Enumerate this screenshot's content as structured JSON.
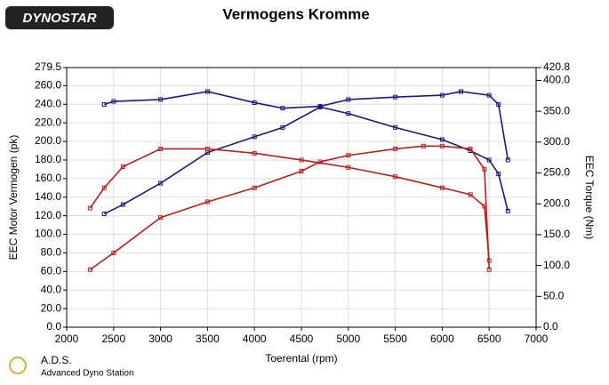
{
  "logo": "DYNOSTAR",
  "footer": {
    "title": "A.D.S.",
    "subtitle": "Advanced Dyno Station"
  },
  "chart_data": {
    "type": "line",
    "title": "Vermogens Kromme",
    "x_label": "Toerental (rpm)",
    "y_label": "EEC Motor Vermogen (pk)",
    "y2_label": "EEC Torque (Nm)",
    "xlim": [
      2000,
      7000
    ],
    "xticks": [
      2000,
      2500,
      3000,
      3500,
      4000,
      4500,
      5000,
      5500,
      6000,
      6500,
      7000
    ],
    "ylim": [
      0,
      279.5
    ],
    "yticks": [
      {
        "value": 0,
        "label": "0.0"
      },
      {
        "value": 20,
        "label": "20.0"
      },
      {
        "value": 40,
        "label": "40.0"
      },
      {
        "value": 60,
        "label": "60.0"
      },
      {
        "value": 80,
        "label": "80.0"
      },
      {
        "value": 100,
        "label": "100.0"
      },
      {
        "value": 120,
        "label": "120.0"
      },
      {
        "value": 140,
        "label": "140.0"
      },
      {
        "value": 160,
        "label": "160.0"
      },
      {
        "value": 180,
        "label": "180.0"
      },
      {
        "value": 200,
        "label": "200.0"
      },
      {
        "value": 220,
        "label": "220.0"
      },
      {
        "value": 240,
        "label": "240.0"
      },
      {
        "value": 260,
        "label": "260.0"
      },
      {
        "value": 279.5,
        "label": "279.5"
      }
    ],
    "y2lim": [
      0,
      420.8
    ],
    "y2ticks": [
      {
        "value": 0,
        "label": "0.0"
      },
      {
        "value": 50,
        "label": "50.0"
      },
      {
        "value": 100,
        "label": "100.0"
      },
      {
        "value": 150,
        "label": "150.0"
      },
      {
        "value": 200,
        "label": "200.0"
      },
      {
        "value": 250,
        "label": "250.0"
      },
      {
        "value": 300,
        "label": "300.0"
      },
      {
        "value": 350,
        "label": "350.0"
      },
      {
        "value": 400,
        "label": "400.0"
      },
      {
        "value": 420.8,
        "label": "420.8"
      }
    ],
    "grid": true,
    "series": [
      {
        "color": "#1a1a7a",
        "axis": "y2",
        "x": [
          2400,
          2500,
          3000,
          3500,
          4000,
          4300,
          4700,
          5000,
          5500,
          6000,
          6200,
          6500,
          6600,
          6700
        ],
        "values": [
          361,
          366,
          369,
          382,
          364,
          355,
          358,
          369,
          373,
          376,
          382,
          376,
          361,
          271
        ]
      },
      {
        "color": "#1a1a7a",
        "x": [
          2400,
          2600,
          3000,
          3500,
          4000,
          4300,
          4700,
          5000,
          5500,
          6000,
          6300,
          6500,
          6600,
          6700
        ],
        "values": [
          122,
          132,
          155,
          188,
          205,
          215,
          237,
          230,
          215,
          202,
          190,
          180,
          165,
          125
        ]
      },
      {
        "color": "#b52020",
        "axis": "y2",
        "x": [
          2250,
          2400,
          2600,
          3000,
          3500,
          4000,
          4500,
          5000,
          5500,
          6000,
          6300,
          6450,
          6500
        ],
        "values": [
          193,
          226,
          260,
          289,
          289,
          282,
          271,
          259,
          244,
          226,
          215,
          196,
          108
        ]
      },
      {
        "color": "#b52020",
        "x": [
          2250,
          2500,
          3000,
          3500,
          4000,
          4500,
          4700,
          5000,
          5500,
          5800,
          6000,
          6300,
          6450,
          6500
        ],
        "values": [
          62,
          80,
          118,
          135,
          150,
          168,
          178,
          185,
          192,
          195,
          195,
          192,
          170,
          62
        ]
      }
    ]
  }
}
